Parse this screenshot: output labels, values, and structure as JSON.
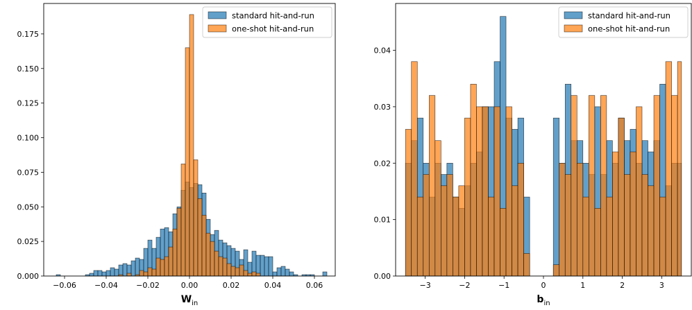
{
  "chart_data": [
    {
      "type": "bar",
      "subtype": "histogram",
      "xlabel": "W",
      "xlabel_subscript": "in",
      "xlim": [
        -0.07,
        0.07
      ],
      "ylim": [
        0,
        0.197
      ],
      "xticks": [
        -0.06,
        -0.04,
        -0.02,
        0.0,
        0.02,
        0.04,
        0.06
      ],
      "xtick_labels": [
        "−0.06",
        "−0.04",
        "−0.02",
        "0.00",
        "0.02",
        "0.04",
        "0.06"
      ],
      "yticks": [
        0,
        0.025,
        0.05,
        0.075,
        0.1,
        0.125,
        0.15,
        0.175
      ],
      "ytick_labels": [
        "0.000",
        "0.025",
        "0.050",
        "0.075",
        "0.100",
        "0.125",
        "0.150",
        "0.175"
      ],
      "legend_position": "upper-right",
      "series": [
        {
          "name": "standard hit-and-run",
          "color": "#1f77b4",
          "bins": [
            {
              "x0": -0.064,
              "x1": -0.062,
              "y": 0.001
            },
            {
              "x0": -0.05,
              "x1": -0.048,
              "y": 0.001
            },
            {
              "x0": -0.048,
              "x1": -0.046,
              "y": 0.002
            },
            {
              "x0": -0.046,
              "x1": -0.044,
              "y": 0.004
            },
            {
              "x0": -0.044,
              "x1": -0.042,
              "y": 0.004
            },
            {
              "x0": -0.042,
              "x1": -0.04,
              "y": 0.003
            },
            {
              "x0": -0.04,
              "x1": -0.038,
              "y": 0.004
            },
            {
              "x0": -0.038,
              "x1": -0.036,
              "y": 0.006
            },
            {
              "x0": -0.036,
              "x1": -0.034,
              "y": 0.005
            },
            {
              "x0": -0.034,
              "x1": -0.032,
              "y": 0.008
            },
            {
              "x0": -0.032,
              "x1": -0.03,
              "y": 0.009
            },
            {
              "x0": -0.03,
              "x1": -0.028,
              "y": 0.008
            },
            {
              "x0": -0.028,
              "x1": -0.026,
              "y": 0.011
            },
            {
              "x0": -0.026,
              "x1": -0.024,
              "y": 0.013
            },
            {
              "x0": -0.024,
              "x1": -0.022,
              "y": 0.012
            },
            {
              "x0": -0.022,
              "x1": -0.02,
              "y": 0.02
            },
            {
              "x0": -0.02,
              "x1": -0.018,
              "y": 0.026
            },
            {
              "x0": -0.018,
              "x1": -0.016,
              "y": 0.02
            },
            {
              "x0": -0.016,
              "x1": -0.014,
              "y": 0.028
            },
            {
              "x0": -0.014,
              "x1": -0.012,
              "y": 0.034
            },
            {
              "x0": -0.012,
              "x1": -0.01,
              "y": 0.035
            },
            {
              "x0": -0.01,
              "x1": -0.008,
              "y": 0.032
            },
            {
              "x0": -0.008,
              "x1": -0.006,
              "y": 0.045
            },
            {
              "x0": -0.006,
              "x1": -0.004,
              "y": 0.05
            },
            {
              "x0": -0.004,
              "x1": -0.002,
              "y": 0.062
            },
            {
              "x0": -0.002,
              "x1": 0.0,
              "y": 0.068
            },
            {
              "x0": 0.0,
              "x1": 0.002,
              "y": 0.064
            },
            {
              "x0": 0.002,
              "x1": 0.004,
              "y": 0.067
            },
            {
              "x0": 0.004,
              "x1": 0.006,
              "y": 0.066
            },
            {
              "x0": 0.006,
              "x1": 0.008,
              "y": 0.06
            },
            {
              "x0": 0.008,
              "x1": 0.01,
              "y": 0.041
            },
            {
              "x0": 0.01,
              "x1": 0.012,
              "y": 0.03
            },
            {
              "x0": 0.012,
              "x1": 0.014,
              "y": 0.033
            },
            {
              "x0": 0.014,
              "x1": 0.016,
              "y": 0.026
            },
            {
              "x0": 0.016,
              "x1": 0.018,
              "y": 0.024
            },
            {
              "x0": 0.018,
              "x1": 0.02,
              "y": 0.022
            },
            {
              "x0": 0.02,
              "x1": 0.022,
              "y": 0.02
            },
            {
              "x0": 0.022,
              "x1": 0.024,
              "y": 0.018
            },
            {
              "x0": 0.024,
              "x1": 0.026,
              "y": 0.012
            },
            {
              "x0": 0.026,
              "x1": 0.028,
              "y": 0.019
            },
            {
              "x0": 0.028,
              "x1": 0.03,
              "y": 0.01
            },
            {
              "x0": 0.03,
              "x1": 0.032,
              "y": 0.018
            },
            {
              "x0": 0.032,
              "x1": 0.034,
              "y": 0.015
            },
            {
              "x0": 0.034,
              "x1": 0.036,
              "y": 0.015
            },
            {
              "x0": 0.036,
              "x1": 0.038,
              "y": 0.014
            },
            {
              "x0": 0.038,
              "x1": 0.04,
              "y": 0.014
            },
            {
              "x0": 0.04,
              "x1": 0.042,
              "y": 0.003
            },
            {
              "x0": 0.042,
              "x1": 0.044,
              "y": 0.006
            },
            {
              "x0": 0.044,
              "x1": 0.046,
              "y": 0.007
            },
            {
              "x0": 0.046,
              "x1": 0.048,
              "y": 0.005
            },
            {
              "x0": 0.048,
              "x1": 0.05,
              "y": 0.003
            },
            {
              "x0": 0.05,
              "x1": 0.052,
              "y": 0.001
            },
            {
              "x0": 0.054,
              "x1": 0.056,
              "y": 0.001
            },
            {
              "x0": 0.056,
              "x1": 0.058,
              "y": 0.001
            },
            {
              "x0": 0.058,
              "x1": 0.06,
              "y": 0.001
            },
            {
              "x0": 0.064,
              "x1": 0.066,
              "y": 0.003
            }
          ]
        },
        {
          "name": "one-shot hit-and-run",
          "color": "#ff7f0e",
          "bins": [
            {
              "x0": -0.034,
              "x1": -0.032,
              "y": 0.001
            },
            {
              "x0": -0.03,
              "x1": -0.028,
              "y": 0.002
            },
            {
              "x0": -0.026,
              "x1": -0.024,
              "y": 0.001
            },
            {
              "x0": -0.024,
              "x1": -0.022,
              "y": 0.004
            },
            {
              "x0": -0.022,
              "x1": -0.02,
              "y": 0.003
            },
            {
              "x0": -0.02,
              "x1": -0.018,
              "y": 0.006
            },
            {
              "x0": -0.018,
              "x1": -0.016,
              "y": 0.005
            },
            {
              "x0": -0.016,
              "x1": -0.014,
              "y": 0.013
            },
            {
              "x0": -0.014,
              "x1": -0.012,
              "y": 0.012
            },
            {
              "x0": -0.012,
              "x1": -0.01,
              "y": 0.014
            },
            {
              "x0": -0.01,
              "x1": -0.008,
              "y": 0.021
            },
            {
              "x0": -0.008,
              "x1": -0.006,
              "y": 0.034
            },
            {
              "x0": -0.006,
              "x1": -0.004,
              "y": 0.049
            },
            {
              "x0": -0.004,
              "x1": -0.002,
              "y": 0.081
            },
            {
              "x0": -0.002,
              "x1": 0.0,
              "y": 0.165
            },
            {
              "x0": 0.0,
              "x1": 0.002,
              "y": 0.189
            },
            {
              "x0": 0.002,
              "x1": 0.004,
              "y": 0.084
            },
            {
              "x0": 0.004,
              "x1": 0.006,
              "y": 0.056
            },
            {
              "x0": 0.006,
              "x1": 0.008,
              "y": 0.044
            },
            {
              "x0": 0.008,
              "x1": 0.01,
              "y": 0.031
            },
            {
              "x0": 0.01,
              "x1": 0.012,
              "y": 0.025
            },
            {
              "x0": 0.012,
              "x1": 0.014,
              "y": 0.018
            },
            {
              "x0": 0.014,
              "x1": 0.016,
              "y": 0.014
            },
            {
              "x0": 0.016,
              "x1": 0.018,
              "y": 0.013
            },
            {
              "x0": 0.018,
              "x1": 0.02,
              "y": 0.009
            },
            {
              "x0": 0.02,
              "x1": 0.022,
              "y": 0.007
            },
            {
              "x0": 0.022,
              "x1": 0.024,
              "y": 0.006
            },
            {
              "x0": 0.024,
              "x1": 0.026,
              "y": 0.008
            },
            {
              "x0": 0.026,
              "x1": 0.028,
              "y": 0.004
            },
            {
              "x0": 0.028,
              "x1": 0.03,
              "y": 0.002
            },
            {
              "x0": 0.03,
              "x1": 0.032,
              "y": 0.003
            },
            {
              "x0": 0.032,
              "x1": 0.034,
              "y": 0.002
            }
          ]
        }
      ]
    },
    {
      "type": "bar",
      "subtype": "histogram",
      "xlabel": "b",
      "xlabel_subscript": "in",
      "xlim": [
        -3.75,
        3.75
      ],
      "ylim": [
        0,
        0.0483
      ],
      "xticks": [
        -3,
        -2,
        -1,
        0,
        1,
        2,
        3
      ],
      "xtick_labels": [
        "−3",
        "−2",
        "−1",
        "0",
        "1",
        "2",
        "3"
      ],
      "yticks": [
        0,
        0.01,
        0.02,
        0.03,
        0.04
      ],
      "ytick_labels": [
        "0.00",
        "0.01",
        "0.02",
        "0.03",
        "0.04"
      ],
      "legend_position": "upper-right",
      "bin_edges": [
        -3.5,
        -3.35,
        -3.2,
        -3.05,
        -2.9,
        -2.75,
        -2.6,
        -2.45,
        -2.3,
        -2.15,
        -2.0,
        -1.85,
        -1.7,
        -1.55,
        -1.4,
        -1.25,
        -1.1,
        -0.95,
        -0.8,
        -0.65,
        -0.5,
        -0.35,
        0.25,
        0.4,
        0.55,
        0.7,
        0.85,
        1.0,
        1.15,
        1.3,
        1.45,
        1.6,
        1.75,
        1.9,
        2.05,
        2.2,
        2.35,
        2.5,
        2.65,
        2.8,
        2.95,
        3.1,
        3.25,
        3.4,
        3.5
      ],
      "series": [
        {
          "name": "standard hit-and-run",
          "color": "#1f77b4",
          "values": [
            0.02,
            0.024,
            0.028,
            0.02,
            0.014,
            0.02,
            0.018,
            0.02,
            0.014,
            0.012,
            0.016,
            0.02,
            0.022,
            0.03,
            0.03,
            0.038,
            0.046,
            0.028,
            0.026,
            0.028,
            0.014,
            0,
            0.028,
            0.02,
            0.034,
            0.024,
            0.024,
            0.02,
            0.018,
            0.03,
            0.018,
            0.024,
            0.02,
            0.028,
            0.024,
            0.026,
            0.02,
            0.024,
            0.022,
            0.024,
            0.034,
            0.016,
            0.02,
            0.02
          ]
        },
        {
          "name": "one-shot hit-and-run",
          "color": "#ff7f0e",
          "values": [
            0.026,
            0.038,
            0.014,
            0.018,
            0.032,
            0.024,
            0.016,
            0.018,
            0.014,
            0.016,
            0.028,
            0.034,
            0.03,
            0.03,
            0.014,
            0.03,
            0.012,
            0.03,
            0.016,
            0.02,
            0.004,
            0,
            0.002,
            0.02,
            0.018,
            0.032,
            0.02,
            0.014,
            0.032,
            0.012,
            0.032,
            0.014,
            0.022,
            0.028,
            0.018,
            0.022,
            0.03,
            0.018,
            0.016,
            0.032,
            0.014,
            0.038,
            0.032,
            0.038
          ]
        }
      ]
    }
  ]
}
